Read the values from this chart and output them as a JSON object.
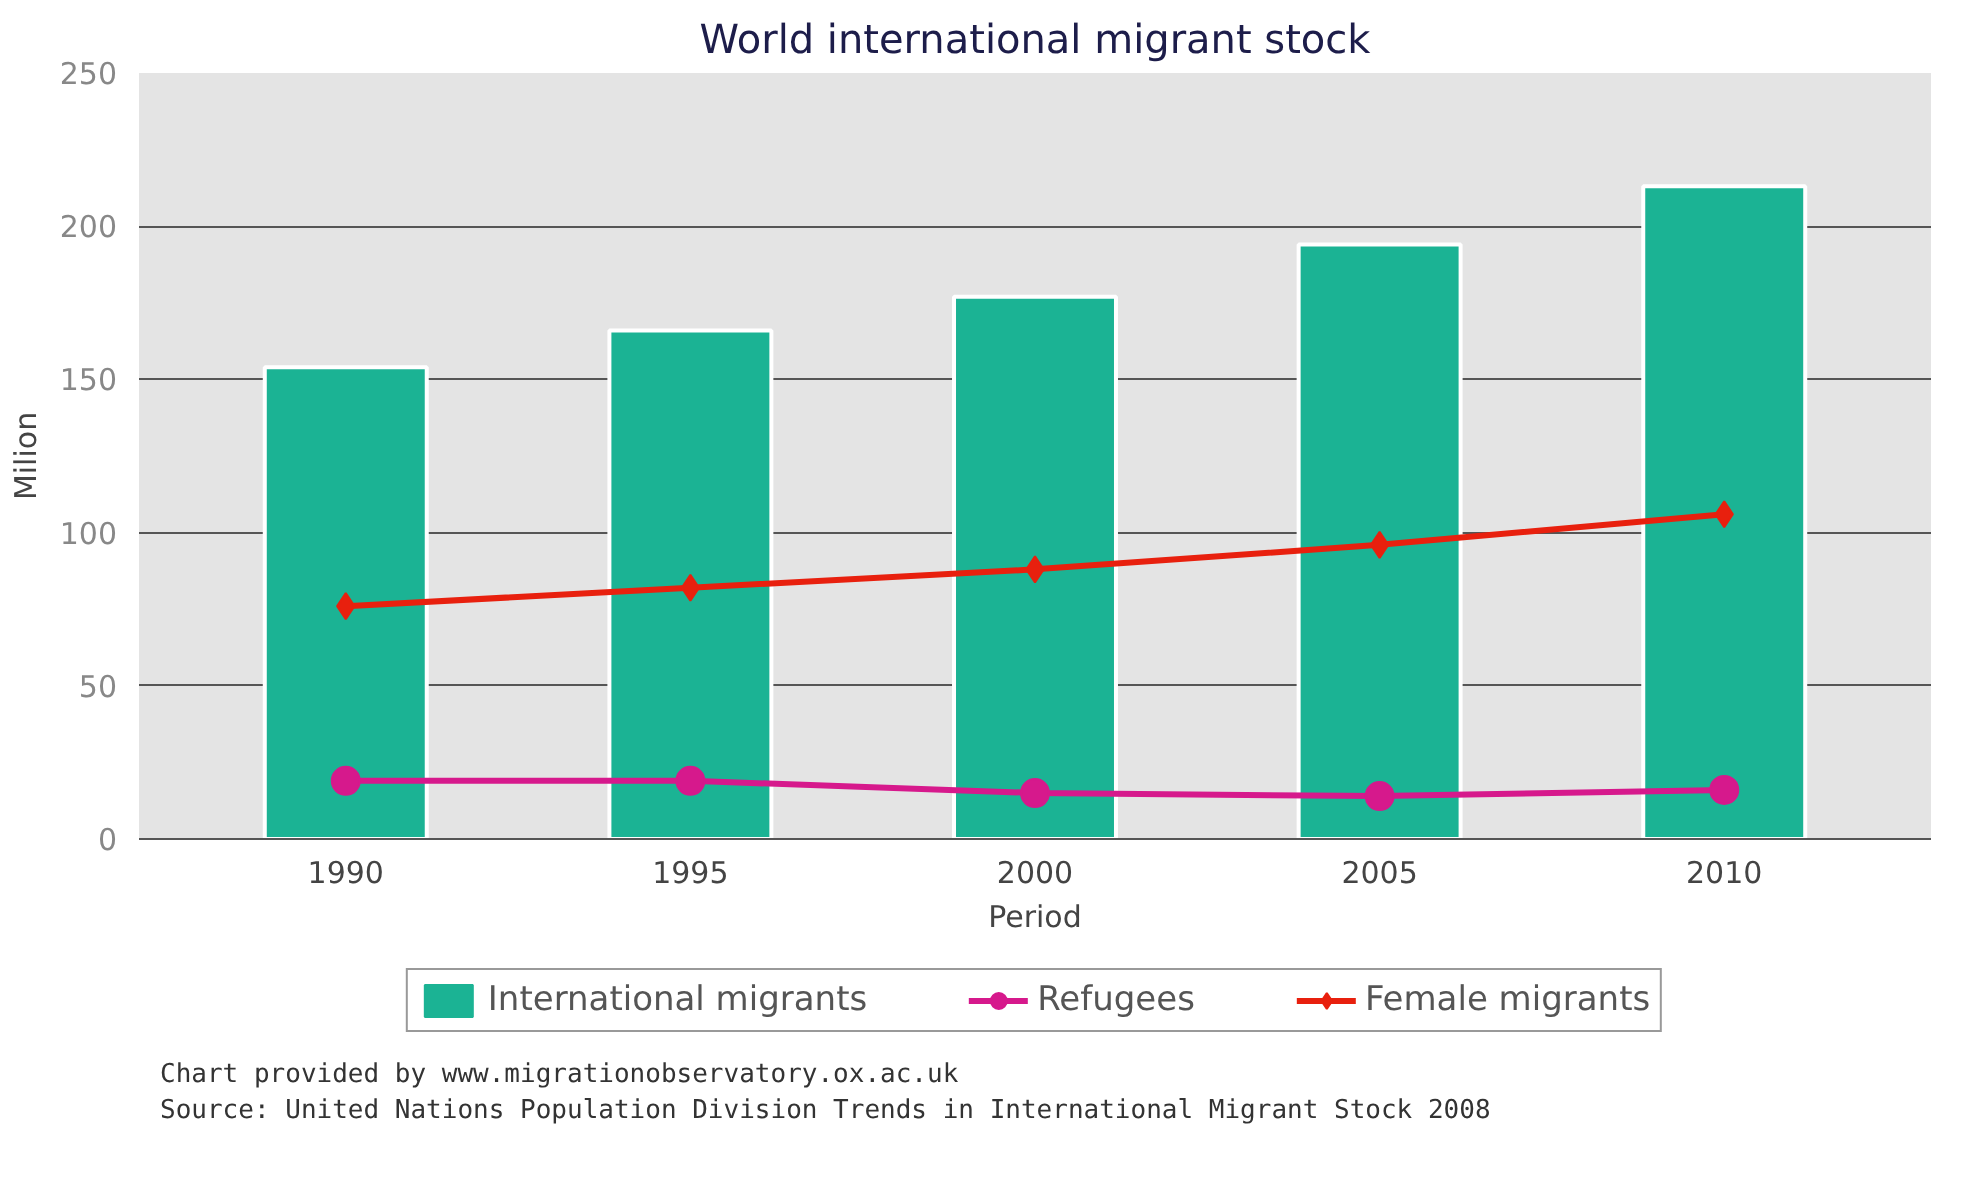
{
  "chart_data": {
    "type": "bar",
    "title": "World international migrant stock",
    "xlabel": "Period",
    "ylabel": "Milion",
    "categories": [
      "1990",
      "1995",
      "2000",
      "2005",
      "2010"
    ],
    "series": [
      {
        "name": "International migrants",
        "color": "#1bb394",
        "values": [
          154,
          166,
          177,
          194,
          213
        ]
      },
      {
        "name": "Refugees",
        "type": "line",
        "marker": "circle",
        "color": "#d6198c",
        "values": [
          19,
          19,
          15,
          14,
          16
        ]
      },
      {
        "name": "Female migrants",
        "type": "line",
        "marker": "diamond",
        "color": "#e8200e",
        "values": [
          76,
          82,
          88,
          96,
          106
        ]
      }
    ],
    "ylim": [
      0,
      250
    ],
    "yticks": [
      0,
      50,
      100,
      150,
      200,
      250
    ],
    "grid": "y",
    "legend": "bottom",
    "annotations": [
      "Chart provided by www.migrationobservatory.ox.ac.uk",
      "Source: United Nations Population Division Trends in International Migrant Stock 2008"
    ]
  }
}
